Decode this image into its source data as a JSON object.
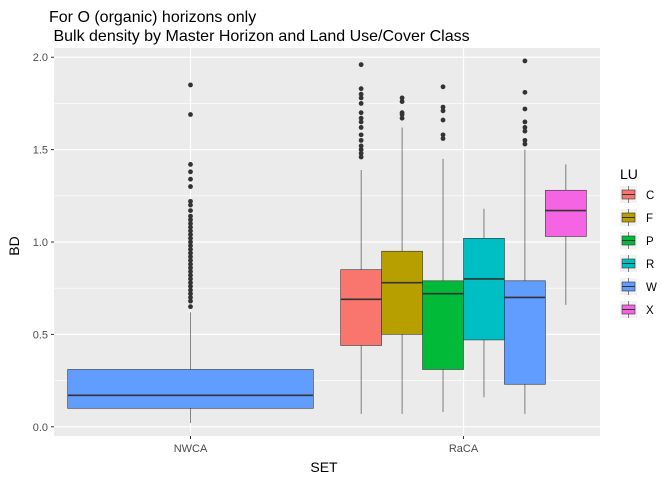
{
  "chart_data": {
    "type": "boxplot",
    "title_line1": "For O (organic) horizons only",
    "title_line2": " Bulk density by Master Horizon and Land Use/Cover Class",
    "xlabel": "SET",
    "ylabel": "BD",
    "ylim": [
      -0.05,
      2.05
    ],
    "yticks": [
      "0.0",
      "0.5",
      "1.0",
      "1.5",
      "2.0"
    ],
    "ytick_values": [
      0,
      0.5,
      1.0,
      1.5,
      2.0
    ],
    "categories": [
      "NWCA",
      "RaCA"
    ],
    "grid": true,
    "legend": {
      "title": "LU",
      "position": "right",
      "items": [
        {
          "key": "C",
          "color": "#F8766D"
        },
        {
          "key": "F",
          "color": "#B79F00"
        },
        {
          "key": "P",
          "color": "#00BA38"
        },
        {
          "key": "R",
          "color": "#00BFC4"
        },
        {
          "key": "W",
          "color": "#619CFF"
        },
        {
          "key": "X",
          "color": "#F564E3"
        }
      ]
    },
    "boxes": [
      {
        "category": "NWCA",
        "lu": "W",
        "color": "#619CFF",
        "min": 0.02,
        "q1": 0.1,
        "median": 0.17,
        "q3": 0.31,
        "max": 0.62,
        "outliers": [
          0.65,
          0.68,
          0.7,
          0.72,
          0.74,
          0.76,
          0.78,
          0.8,
          0.82,
          0.84,
          0.86,
          0.88,
          0.9,
          0.92,
          0.94,
          0.96,
          0.98,
          1.0,
          1.02,
          1.04,
          1.06,
          1.08,
          1.1,
          1.12,
          1.14,
          1.17,
          1.2,
          1.22,
          1.3,
          1.34,
          1.38,
          1.42,
          1.69,
          1.85
        ]
      },
      {
        "category": "RaCA",
        "lu": "C",
        "color": "#F8766D",
        "min": 0.07,
        "q1": 0.44,
        "median": 0.69,
        "q3": 0.85,
        "max": 1.39,
        "outliers": [
          1.46,
          1.48,
          1.5,
          1.52,
          1.55,
          1.58,
          1.62,
          1.65,
          1.67,
          1.7,
          1.75,
          1.78,
          1.8,
          1.83,
          1.96
        ]
      },
      {
        "category": "RaCA",
        "lu": "F",
        "color": "#B79F00",
        "min": 0.07,
        "q1": 0.5,
        "median": 0.78,
        "q3": 0.95,
        "max": 1.62,
        "outliers": [
          1.67,
          1.69,
          1.7,
          1.76,
          1.78
        ]
      },
      {
        "category": "RaCA",
        "lu": "P",
        "color": "#00BA38",
        "min": 0.08,
        "q1": 0.31,
        "median": 0.72,
        "q3": 0.79,
        "max": 1.45,
        "outliers": [
          1.56,
          1.58,
          1.66,
          1.71,
          1.73,
          1.84
        ]
      },
      {
        "category": "RaCA",
        "lu": "R",
        "color": "#00BFC4",
        "min": 0.16,
        "q1": 0.47,
        "median": 0.8,
        "q3": 1.02,
        "max": 1.18,
        "outliers": []
      },
      {
        "category": "RaCA",
        "lu": "W",
        "color": "#619CFF",
        "min": 0.07,
        "q1": 0.23,
        "median": 0.7,
        "q3": 0.79,
        "max": 1.5,
        "outliers": [
          1.53,
          1.55,
          1.6,
          1.62,
          1.65,
          1.72,
          1.81,
          1.98
        ]
      },
      {
        "category": "RaCA",
        "lu": "X",
        "color": "#F564E3",
        "min": 0.66,
        "q1": 1.03,
        "median": 1.17,
        "q3": 1.28,
        "max": 1.42,
        "outliers": []
      }
    ]
  }
}
